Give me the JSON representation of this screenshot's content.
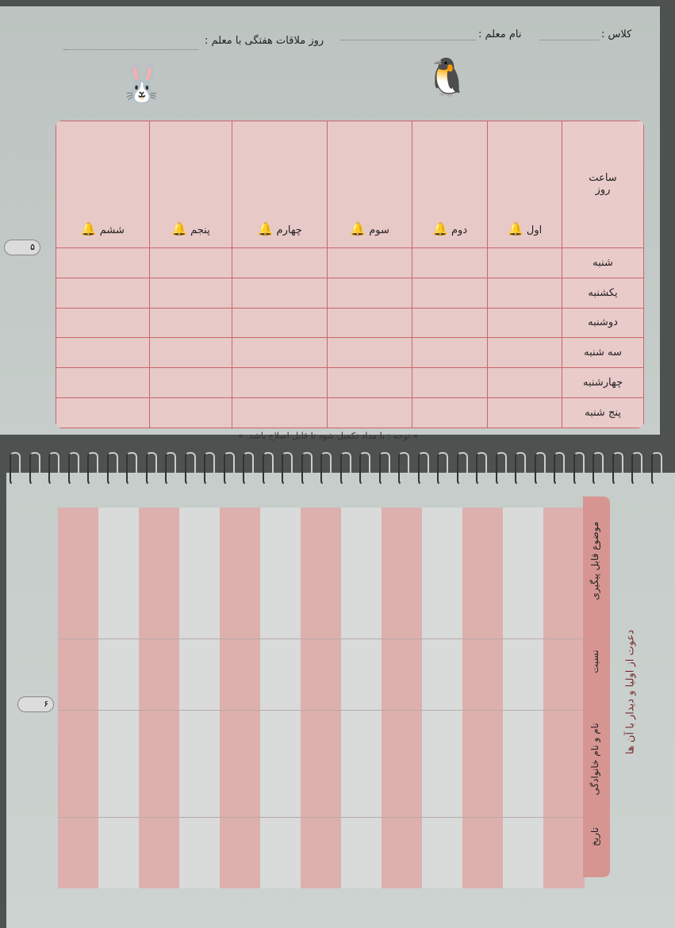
{
  "top_page": {
    "header": {
      "class_label": "کلاس :",
      "teacher_label": "نام معلم :",
      "meeting_day_label": "روز ملاقات هفتگی با معلم :"
    },
    "schedule": {
      "corner_top": "ساعت",
      "corner_bottom": "روز",
      "periods": [
        "اول",
        "دوم",
        "سوم",
        "چهارم",
        "پنجم",
        "ششم"
      ],
      "days": [
        "شنبه",
        "یکشنبه",
        "دوشنبه",
        "سه شنبه",
        "چهارشنبه",
        "پنج شنبه"
      ]
    },
    "note": "« توجه : با مداد تکمیل شود تا قابل اصلاح باشد. »",
    "page_number": "۵"
  },
  "bottom_page": {
    "title": "دعوت از اولیا و دیدار با آن ها",
    "columns": [
      "تاریخ",
      "نام و نام خانوادگی",
      "نسبت",
      "موضوع قابل پیگیری"
    ],
    "page_number": "۶"
  },
  "colors": {
    "pink": "#e7c9c8",
    "header_pink": "#d79592",
    "grid_red": "#c9666b"
  }
}
